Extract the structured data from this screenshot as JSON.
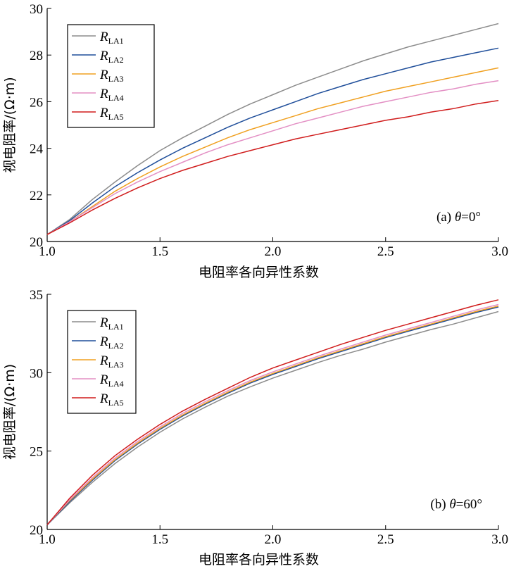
{
  "chart_data": [
    {
      "type": "line",
      "annotation_prefix": "(a) ",
      "annotation_symbol": "θ",
      "annotation_value": "=0°",
      "xlabel": "电阻率各向异性系数",
      "ylabel": "视电阻率/(Ω·m)",
      "xlim": [
        1.0,
        3.0
      ],
      "ylim": [
        20,
        30
      ],
      "xticks": [
        "1.0",
        "1.5",
        "2.0",
        "2.5",
        "3.0"
      ],
      "yticks": [
        "20",
        "22",
        "24",
        "26",
        "28",
        "30"
      ],
      "legend_position": "top-left",
      "x": [
        1.0,
        1.1,
        1.2,
        1.3,
        1.4,
        1.5,
        1.6,
        1.7,
        1.8,
        1.9,
        2.0,
        2.1,
        2.2,
        2.3,
        2.4,
        2.5,
        2.6,
        2.7,
        2.8,
        2.9,
        3.0
      ],
      "series": [
        {
          "name_main": "R",
          "name_sub": "LA1",
          "color": "#8c8c8c",
          "values": [
            20.3,
            20.95,
            21.8,
            22.55,
            23.25,
            23.9,
            24.45,
            24.95,
            25.45,
            25.9,
            26.3,
            26.7,
            27.05,
            27.4,
            27.75,
            28.05,
            28.35,
            28.6,
            28.85,
            29.1,
            29.35
          ]
        },
        {
          "name_main": "R",
          "name_sub": "LA2",
          "color": "#1f4e9a",
          "values": [
            20.3,
            20.9,
            21.65,
            22.35,
            22.95,
            23.5,
            24.0,
            24.45,
            24.9,
            25.3,
            25.65,
            26.0,
            26.35,
            26.65,
            26.95,
            27.2,
            27.45,
            27.7,
            27.9,
            28.1,
            28.3
          ]
        },
        {
          "name_main": "R",
          "name_sub": "LA3",
          "color": "#f0a020",
          "values": [
            20.3,
            20.85,
            21.5,
            22.15,
            22.7,
            23.2,
            23.65,
            24.05,
            24.45,
            24.8,
            25.1,
            25.4,
            25.7,
            25.95,
            26.2,
            26.45,
            26.65,
            26.85,
            27.05,
            27.25,
            27.45
          ]
        },
        {
          "name_main": "R",
          "name_sub": "LA4",
          "color": "#e38fc4",
          "values": [
            20.3,
            20.85,
            21.45,
            22.05,
            22.55,
            23.0,
            23.4,
            23.8,
            24.15,
            24.45,
            24.75,
            25.05,
            25.3,
            25.55,
            25.8,
            26.0,
            26.2,
            26.4,
            26.55,
            26.75,
            26.9
          ]
        },
        {
          "name_main": "R",
          "name_sub": "LA5",
          "color": "#d01c1c",
          "values": [
            20.3,
            20.8,
            21.35,
            21.85,
            22.3,
            22.7,
            23.05,
            23.35,
            23.65,
            23.9,
            24.15,
            24.4,
            24.6,
            24.8,
            25.0,
            25.2,
            25.35,
            25.55,
            25.7,
            25.9,
            26.05
          ]
        }
      ]
    },
    {
      "type": "line",
      "annotation_prefix": "(b) ",
      "annotation_symbol": "θ",
      "annotation_value": "=60°",
      "xlabel": "电阻率各向异性系数",
      "ylabel": "视电阻率/(Ω·m)",
      "xlim": [
        1.0,
        3.0
      ],
      "ylim": [
        20,
        35
      ],
      "xticks": [
        "1.0",
        "1.5",
        "2.0",
        "2.5",
        "3.0"
      ],
      "yticks": [
        "20",
        "25",
        "30",
        "35"
      ],
      "legend_position": "top-left",
      "x": [
        1.0,
        1.1,
        1.2,
        1.3,
        1.4,
        1.5,
        1.6,
        1.7,
        1.8,
        1.9,
        2.0,
        2.1,
        2.2,
        2.3,
        2.4,
        2.5,
        2.6,
        2.7,
        2.8,
        2.9,
        3.0
      ],
      "series": [
        {
          "name_main": "R",
          "name_sub": "LA1",
          "color": "#8c8c8c",
          "values": [
            20.3,
            21.7,
            23.0,
            24.2,
            25.25,
            26.2,
            27.05,
            27.8,
            28.5,
            29.1,
            29.65,
            30.15,
            30.65,
            31.1,
            31.5,
            31.95,
            32.35,
            32.75,
            33.1,
            33.5,
            33.9
          ]
        },
        {
          "name_main": "R",
          "name_sub": "LA2",
          "color": "#1f4e9a",
          "values": [
            20.3,
            21.8,
            23.15,
            24.4,
            25.45,
            26.4,
            27.25,
            28.0,
            28.7,
            29.35,
            29.9,
            30.4,
            30.9,
            31.35,
            31.8,
            32.25,
            32.65,
            33.05,
            33.45,
            33.85,
            34.2
          ]
        },
        {
          "name_main": "R",
          "name_sub": "LA3",
          "color": "#f0a020",
          "values": [
            20.3,
            21.85,
            23.2,
            24.45,
            25.5,
            26.45,
            27.3,
            28.05,
            28.75,
            29.4,
            29.95,
            30.45,
            30.95,
            31.4,
            31.85,
            32.3,
            32.7,
            33.1,
            33.5,
            33.9,
            34.25
          ]
        },
        {
          "name_main": "R",
          "name_sub": "LA4",
          "color": "#e38fc4",
          "values": [
            20.3,
            21.9,
            23.3,
            24.55,
            25.6,
            26.55,
            27.4,
            28.15,
            28.85,
            29.5,
            30.05,
            30.55,
            31.05,
            31.5,
            31.95,
            32.4,
            32.8,
            33.2,
            33.6,
            34.0,
            34.35
          ]
        },
        {
          "name_main": "R",
          "name_sub": "LA5",
          "color": "#d01c1c",
          "values": [
            20.3,
            22.0,
            23.45,
            24.7,
            25.75,
            26.7,
            27.55,
            28.3,
            29.0,
            29.7,
            30.3,
            30.8,
            31.3,
            31.8,
            32.25,
            32.7,
            33.1,
            33.5,
            33.9,
            34.3,
            34.65
          ]
        }
      ]
    }
  ]
}
